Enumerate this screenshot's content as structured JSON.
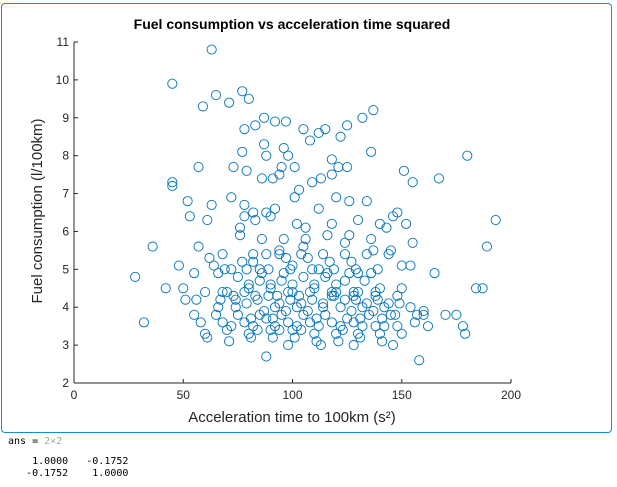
{
  "chart_data": {
    "type": "scatter",
    "title": "Fuel consumption vs acceleration time squared",
    "xlabel": "Acceleration time to 100km (s²)",
    "ylabel": "Fuel consumption (l/100km)",
    "xlim": [
      0,
      200
    ],
    "ylim": [
      2,
      11
    ],
    "xticks": [
      0,
      50,
      100,
      150,
      200
    ],
    "yticks": [
      2,
      3,
      4,
      5,
      6,
      7,
      8,
      9,
      10,
      11
    ],
    "grid": false,
    "marker": "open-circle",
    "color": "#0072bd",
    "x": [
      63,
      45,
      65,
      77,
      80,
      71,
      87,
      92,
      97,
      105,
      112,
      115,
      122,
      125,
      132,
      137,
      59,
      78,
      83,
      87,
      96,
      108,
      98,
      118,
      136,
      180,
      77,
      88,
      95,
      101,
      118,
      121,
      125,
      151,
      57,
      73,
      79,
      86,
      91,
      94,
      103,
      109,
      113,
      155,
      167,
      45,
      45,
      52,
      63,
      72,
      78,
      82,
      88,
      92,
      101,
      112,
      120,
      126,
      134,
      146,
      53,
      61,
      78,
      83,
      90,
      102,
      118,
      130,
      140,
      143,
      152,
      148,
      36,
      57,
      68,
      82,
      94,
      105,
      124,
      137,
      155,
      184,
      193,
      189,
      28,
      42,
      48,
      55,
      64,
      72,
      85,
      100,
      112,
      130,
      150,
      165,
      50,
      60,
      70,
      80,
      90,
      100,
      110,
      120,
      130,
      140,
      150,
      160,
      170,
      187,
      51,
      56,
      67,
      74,
      79,
      84,
      89,
      94,
      99,
      104,
      109,
      114,
      119,
      124,
      129,
      134,
      139,
      144,
      149,
      154,
      55,
      65,
      75,
      85,
      95,
      105,
      115,
      125,
      135,
      145,
      160,
      175,
      58,
      68,
      78,
      88,
      98,
      108,
      118,
      128,
      138,
      148,
      156,
      162,
      178,
      60,
      70,
      80,
      90,
      100,
      110,
      120,
      130,
      140,
      150,
      179,
      61,
      71,
      81,
      91,
      101,
      111,
      121,
      131,
      141,
      88,
      98,
      113,
      128,
      146,
      158,
      32,
      75,
      85,
      95,
      105,
      115,
      124,
      133,
      62,
      77,
      82,
      97,
      107,
      117,
      127,
      76,
      86,
      96,
      106,
      116,
      126,
      136,
      145,
      80,
      90,
      100,
      110,
      120,
      66,
      74,
      92,
      102,
      114,
      122,
      132,
      142,
      84,
      94,
      104,
      123,
      73,
      83,
      93,
      103,
      118,
      128,
      138,
      148,
      87,
      97,
      107,
      127,
      137,
      69,
      79,
      89,
      99,
      109,
      119,
      129,
      139,
      81,
      91,
      111,
      131,
      141,
      66,
      86,
      96,
      116,
      126,
      136,
      76,
      106,
      72,
      82,
      92,
      102,
      112,
      122,
      132,
      142,
      147,
      157,
      68,
      78,
      98,
      108,
      118,
      128,
      138,
      88,
      94,
      104,
      114,
      124,
      134,
      144,
      154
    ],
    "y": [
      10.8,
      9.9,
      9.6,
      9.7,
      9.5,
      9.4,
      9.0,
      8.9,
      8.9,
      8.7,
      8.6,
      8.7,
      8.5,
      8.8,
      9.0,
      9.2,
      9.3,
      8.7,
      8.8,
      8.3,
      8.2,
      8.4,
      8.0,
      7.9,
      8.1,
      8.0,
      8.1,
      8.0,
      7.7,
      7.7,
      7.5,
      7.7,
      7.7,
      7.6,
      7.7,
      7.7,
      7.6,
      7.4,
      7.4,
      7.5,
      7.1,
      7.3,
      7.4,
      7.3,
      7.4,
      7.3,
      7.2,
      6.8,
      6.7,
      6.9,
      6.7,
      6.5,
      6.5,
      6.6,
      6.9,
      6.6,
      6.9,
      6.8,
      6.8,
      6.4,
      6.4,
      6.3,
      6.4,
      6.3,
      6.4,
      6.2,
      6.2,
      6.3,
      6.2,
      6.1,
      6.2,
      6.5,
      5.6,
      5.6,
      5.4,
      5.4,
      5.5,
      5.6,
      5.7,
      5.5,
      5.7,
      4.5,
      6.3,
      5.6,
      4.8,
      4.5,
      5.1,
      4.9,
      5.1,
      5.0,
      5.0,
      5.1,
      5.0,
      4.9,
      5.1,
      4.9,
      4.5,
      4.4,
      4.4,
      4.5,
      4.5,
      4.4,
      4.5,
      4.4,
      4.4,
      4.5,
      4.5,
      3.9,
      3.8,
      4.5,
      4.2,
      4.2,
      4.2,
      4.2,
      4.1,
      4.2,
      4.3,
      4.1,
      4.2,
      4.1,
      4.2,
      4.1,
      4.3,
      4.2,
      4.2,
      4.1,
      4.2,
      4.1,
      4.1,
      4.0,
      3.8,
      3.8,
      3.8,
      3.8,
      3.8,
      3.8,
      3.8,
      3.7,
      3.8,
      3.8,
      3.8,
      3.8,
      3.6,
      3.6,
      3.6,
      3.7,
      3.6,
      3.6,
      3.6,
      3.6,
      3.5,
      3.5,
      3.6,
      3.5,
      3.5,
      3.3,
      3.4,
      3.3,
      3.4,
      3.4,
      3.3,
      3.3,
      3.3,
      3.3,
      3.3,
      3.3,
      3.2,
      3.1,
      3.2,
      3.2,
      3.2,
      3.1,
      3.1,
      3.2,
      3.1,
      2.7,
      3.0,
      3.0,
      3.0,
      3.0,
      2.6,
      3.6,
      4.8,
      4.7,
      4.7,
      4.8,
      4.8,
      4.7,
      4.7,
      5.3,
      5.2,
      5.2,
      5.3,
      5.3,
      5.2,
      5.2,
      5.9,
      5.8,
      5.8,
      5.8,
      5.9,
      5.9,
      5.8,
      5.5,
      4.6,
      4.6,
      4.6,
      4.6,
      4.6,
      4.0,
      4.0,
      4.0,
      4.0,
      4.0,
      4.0,
      4.0,
      4.0,
      3.4,
      3.4,
      3.4,
      3.4,
      4.3,
      4.3,
      4.3,
      4.3,
      4.3,
      4.3,
      4.3,
      4.3,
      3.9,
      3.9,
      3.9,
      3.9,
      3.9,
      5.0,
      5.0,
      5.0,
      5.0,
      5.0,
      5.0,
      5.0,
      5.0,
      3.7,
      3.7,
      3.7,
      3.7,
      3.7,
      4.9,
      4.9,
      4.9,
      4.9,
      4.9,
      4.9,
      6.1,
      6.1,
      3.5,
      3.5,
      3.5,
      3.5,
      3.5,
      3.5,
      3.5,
      3.5,
      3.8,
      3.8,
      4.4,
      4.4,
      4.4,
      4.4,
      4.4,
      4.4,
      4.4,
      5.4,
      5.4,
      5.4,
      5.4,
      5.4,
      5.4,
      5.4,
      5.1
    ]
  },
  "console": {
    "ans_label": "ans =",
    "ans_size": "2×2",
    "rows": [
      "    1.0000   -0.1752",
      "   -0.1752    1.0000"
    ]
  }
}
